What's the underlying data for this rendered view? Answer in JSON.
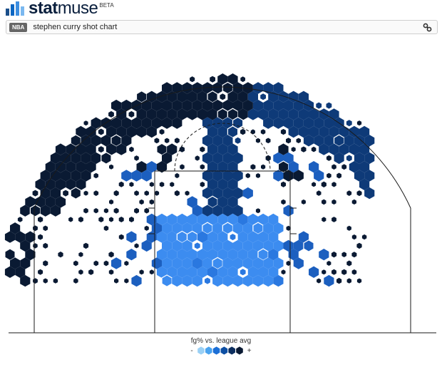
{
  "brand": {
    "name_bold": "stat",
    "name_thin": "muse",
    "beta_label": "BETA",
    "logo_bar_colors": [
      "#1b4f8a",
      "#0b66c3",
      "#3d8ee0",
      "#7ab8f0"
    ]
  },
  "search": {
    "league_badge": "NBA",
    "query": "stephen curry shot chart",
    "link_icon": "link-icon"
  },
  "legend": {
    "title": "fg% vs. league avg",
    "minus": "-",
    "plus": "+",
    "scale_colors": [
      "#9ad0f5",
      "#4aa3ef",
      "#1c6fd6",
      "#0e4fa3",
      "#0c2e5f",
      "#0a1a33"
    ]
  },
  "colors": {
    "court_line": "#1a1a1a",
    "very_hot": "#0a1a33",
    "hot": "#0e3a78",
    "neutral": "#1c5fbf",
    "cold": "#2a78e0",
    "very_cold": "#3c8cf0"
  }
}
